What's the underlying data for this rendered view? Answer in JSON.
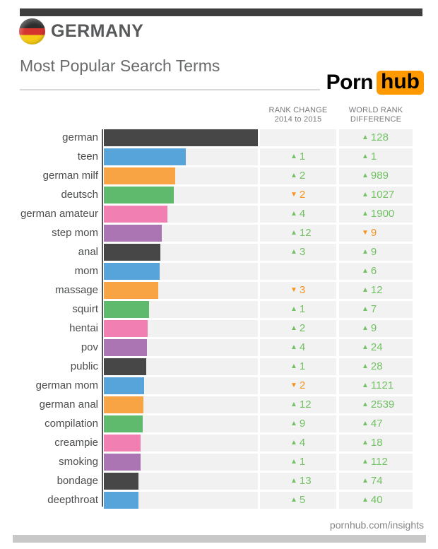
{
  "header": {
    "country": "GERMANY",
    "subtitle": "Most Popular Search Terms"
  },
  "logo": {
    "word1": "Porn",
    "word2": "hub"
  },
  "table_headers": {
    "col1_line1": "RANK CHANGE",
    "col1_line2": "2014 to 2015",
    "col2_line1": "WORLD RANK",
    "col2_line2": "DIFFERENCE"
  },
  "footer": {
    "link": "pornhub.com/insights"
  },
  "icons": {
    "flag": "germany-flag-icon",
    "up_triangle": "▲",
    "down_triangle": "▼"
  },
  "colors": {
    "dark": "#474747",
    "blue": "#57a4da",
    "orange": "#f8a344",
    "green": "#60ba6e",
    "pink": "#f17fb1",
    "purple": "#ab74b2",
    "up": "#72c163",
    "down": "#f7941d",
    "logo_orange": "#ff9900",
    "flag_black": "#2d2d2d",
    "flag_red": "#d5342f",
    "flag_gold": "#f7cc16",
    "top_bar": "#3e3e3e",
    "bottom_bar": "#c8c8c8"
  },
  "chart_data": {
    "type": "bar",
    "title": "Most Popular Search Terms",
    "region": "Germany",
    "legend_position": "none",
    "grid": false,
    "note": "bar_pct = relative bar length, top term german = 100",
    "columns": [
      "search term",
      "relative volume",
      "rank change 2014 to 2015",
      "world rank difference"
    ],
    "rows": [
      {
        "term": "german",
        "bar_pct": 100,
        "color": "dark",
        "rank_change": null,
        "world_rank_diff": {
          "dir": "up",
          "value": 128
        }
      },
      {
        "term": "teen",
        "bar_pct": 53,
        "color": "blue",
        "rank_change": {
          "dir": "up",
          "value": 1
        },
        "world_rank_diff": {
          "dir": "up",
          "value": 1
        }
      },
      {
        "term": "german milf",
        "bar_pct": 46.5,
        "color": "orange",
        "rank_change": {
          "dir": "up",
          "value": 2
        },
        "world_rank_diff": {
          "dir": "up",
          "value": 989
        }
      },
      {
        "term": "deutsch",
        "bar_pct": 45.5,
        "color": "green",
        "rank_change": {
          "dir": "down",
          "value": 2
        },
        "world_rank_diff": {
          "dir": "up",
          "value": 1027
        }
      },
      {
        "term": "german amateur",
        "bar_pct": 41.5,
        "color": "pink",
        "rank_change": {
          "dir": "up",
          "value": 4
        },
        "world_rank_diff": {
          "dir": "up",
          "value": 1900
        }
      },
      {
        "term": "step mom",
        "bar_pct": 37.5,
        "color": "purple",
        "rank_change": {
          "dir": "up",
          "value": 12
        },
        "world_rank_diff": {
          "dir": "down",
          "value": 9
        }
      },
      {
        "term": "anal",
        "bar_pct": 36.8,
        "color": "dark",
        "rank_change": {
          "dir": "up",
          "value": 3
        },
        "world_rank_diff": {
          "dir": "up",
          "value": 9
        }
      },
      {
        "term": "mom",
        "bar_pct": 36.3,
        "color": "blue",
        "rank_change": null,
        "world_rank_diff": {
          "dir": "up",
          "value": 6
        }
      },
      {
        "term": "massage",
        "bar_pct": 35.5,
        "color": "orange",
        "rank_change": {
          "dir": "down",
          "value": 3
        },
        "world_rank_diff": {
          "dir": "up",
          "value": 12
        }
      },
      {
        "term": "squirt",
        "bar_pct": 29.5,
        "color": "green",
        "rank_change": {
          "dir": "up",
          "value": 1
        },
        "world_rank_diff": {
          "dir": "up",
          "value": 7
        }
      },
      {
        "term": "hentai",
        "bar_pct": 28.5,
        "color": "pink",
        "rank_change": {
          "dir": "up",
          "value": 2
        },
        "world_rank_diff": {
          "dir": "up",
          "value": 9
        }
      },
      {
        "term": "pov",
        "bar_pct": 28,
        "color": "purple",
        "rank_change": {
          "dir": "up",
          "value": 4
        },
        "world_rank_diff": {
          "dir": "up",
          "value": 24
        }
      },
      {
        "term": "public",
        "bar_pct": 27.5,
        "color": "dark",
        "rank_change": {
          "dir": "up",
          "value": 1
        },
        "world_rank_diff": {
          "dir": "up",
          "value": 28
        }
      },
      {
        "term": "german mom",
        "bar_pct": 26.2,
        "color": "blue",
        "rank_change": {
          "dir": "down",
          "value": 2
        },
        "world_rank_diff": {
          "dir": "up",
          "value": 1121
        }
      },
      {
        "term": "german anal",
        "bar_pct": 25.7,
        "color": "orange",
        "rank_change": {
          "dir": "up",
          "value": 12
        },
        "world_rank_diff": {
          "dir": "up",
          "value": 2539
        }
      },
      {
        "term": "compilation",
        "bar_pct": 25.2,
        "color": "green",
        "rank_change": {
          "dir": "up",
          "value": 9
        },
        "world_rank_diff": {
          "dir": "up",
          "value": 47
        }
      },
      {
        "term": "creampie",
        "bar_pct": 24,
        "color": "pink",
        "rank_change": {
          "dir": "up",
          "value": 4
        },
        "world_rank_diff": {
          "dir": "up",
          "value": 18
        }
      },
      {
        "term": "smoking",
        "bar_pct": 23.8,
        "color": "purple",
        "rank_change": {
          "dir": "up",
          "value": 1
        },
        "world_rank_diff": {
          "dir": "up",
          "value": 112
        }
      },
      {
        "term": "bondage",
        "bar_pct": 22.5,
        "color": "dark",
        "rank_change": {
          "dir": "up",
          "value": 13
        },
        "world_rank_diff": {
          "dir": "up",
          "value": 74
        }
      },
      {
        "term": "deepthroat",
        "bar_pct": 22.4,
        "color": "blue",
        "rank_change": {
          "dir": "up",
          "value": 5
        },
        "world_rank_diff": {
          "dir": "up",
          "value": 40
        }
      }
    ]
  }
}
